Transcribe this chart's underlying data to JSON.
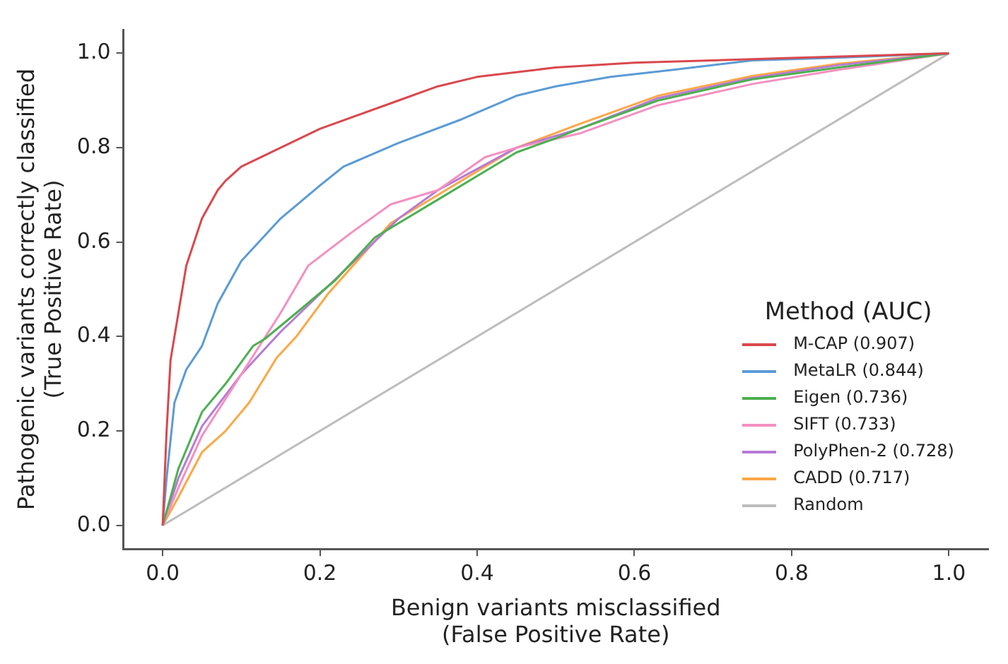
{
  "chart_data": {
    "type": "line",
    "xlabel": "Benign variants misclassified\n(False Positive Rate)",
    "ylabel": "Pathogenic variants correctly classified\n(True Positive Rate)",
    "legend_title": "Method (AUC)",
    "legend": "bottom right",
    "grid": false,
    "marker": "none",
    "line_style": "solid",
    "xlim": [
      -0.05,
      1.05
    ],
    "ylim": [
      -0.05,
      1.05
    ],
    "xticks": [
      {
        "value": 0,
        "label": "0.0"
      },
      0.2,
      0.4,
      0.6,
      0.8,
      {
        "value": 1,
        "label": "1.0"
      }
    ],
    "yticks": [
      {
        "value": 0,
        "label": "0.0"
      },
      0.2,
      0.4,
      0.6,
      0.8,
      {
        "value": 1,
        "label": "1.0"
      }
    ],
    "series": [
      {
        "name": "M-CAP (0.907)",
        "color": "#d9484c",
        "x": [
          0,
          0.005,
          0.01,
          0.02,
          0.03,
          0.05,
          0.07,
          0.08,
          0.1,
          0.15,
          0.2,
          0.3,
          0.35,
          0.4,
          0.5,
          0.6,
          0.7,
          0.8,
          0.9,
          1
        ],
        "values": [
          0,
          0.2,
          0.35,
          0.45,
          0.55,
          0.65,
          0.71,
          0.73,
          0.76,
          0.8,
          0.84,
          0.9,
          0.93,
          0.95,
          0.97,
          0.98,
          0.985,
          0.99,
          0.995,
          1
        ]
      },
      {
        "name": "MetaLR (0.844)",
        "color": "#5b9bd5",
        "x": [
          0,
          0.005,
          0.015,
          0.03,
          0.05,
          0.07,
          0.1,
          0.15,
          0.2,
          0.23,
          0.3,
          0.38,
          0.45,
          0.5,
          0.57,
          0.65,
          0.75,
          0.85,
          1
        ],
        "values": [
          0,
          0.1,
          0.26,
          0.33,
          0.38,
          0.47,
          0.56,
          0.65,
          0.72,
          0.76,
          0.81,
          0.86,
          0.91,
          0.93,
          0.95,
          0.965,
          0.985,
          0.99,
          1
        ]
      },
      {
        "name": "Eigen (0.736)",
        "color": "#4caf50",
        "x": [
          0,
          0.02,
          0.05,
          0.08,
          0.115,
          0.13,
          0.17,
          0.22,
          0.27,
          0.35,
          0.45,
          0.5,
          0.53,
          0.63,
          0.75,
          0.86,
          1
        ],
        "values": [
          0,
          0.12,
          0.24,
          0.3,
          0.38,
          0.395,
          0.45,
          0.52,
          0.61,
          0.69,
          0.79,
          0.82,
          0.84,
          0.9,
          0.945,
          0.97,
          1
        ]
      },
      {
        "name": "SIFT (0.733)",
        "color": "#f48fc0",
        "x": [
          0,
          0.02,
          0.05,
          0.1,
          0.15,
          0.185,
          0.24,
          0.29,
          0.35,
          0.41,
          0.45,
          0.53,
          0.63,
          0.75,
          0.86,
          1
        ],
        "values": [
          0,
          0.08,
          0.19,
          0.32,
          0.45,
          0.55,
          0.62,
          0.68,
          0.71,
          0.78,
          0.8,
          0.83,
          0.89,
          0.935,
          0.965,
          1
        ]
      },
      {
        "name": "PolyPhen-2 (0.728)",
        "color": "#b77ad6",
        "x": [
          0,
          0.02,
          0.05,
          0.1,
          0.15,
          0.2,
          0.25,
          0.3,
          0.35,
          0.45,
          0.53,
          0.63,
          0.75,
          0.86,
          1
        ],
        "values": [
          0,
          0.1,
          0.21,
          0.32,
          0.41,
          0.49,
          0.57,
          0.65,
          0.71,
          0.8,
          0.84,
          0.905,
          0.948,
          0.975,
          1
        ]
      },
      {
        "name": "CADD (0.717)",
        "color": "#fca745",
        "x": [
          0,
          0.02,
          0.05,
          0.08,
          0.11,
          0.145,
          0.17,
          0.21,
          0.29,
          0.35,
          0.45,
          0.53,
          0.63,
          0.75,
          0.86,
          1
        ],
        "values": [
          0,
          0.06,
          0.155,
          0.2,
          0.26,
          0.355,
          0.4,
          0.49,
          0.64,
          0.7,
          0.8,
          0.85,
          0.91,
          0.952,
          0.978,
          1
        ]
      },
      {
        "name": "Random",
        "color": "#bdbdbd",
        "x": [
          0,
          1
        ],
        "values": [
          0,
          1
        ]
      }
    ]
  }
}
